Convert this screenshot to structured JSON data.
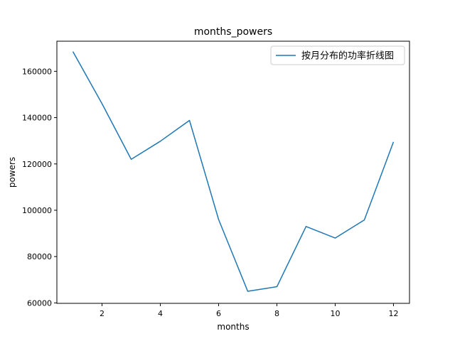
{
  "chart_data": {
    "type": "line",
    "title": "months_powers",
    "xlabel": "months",
    "ylabel": "powers",
    "xlim": [
      0.45,
      12.55
    ],
    "ylim": [
      59800,
      173000
    ],
    "xticks": [
      2,
      4,
      6,
      8,
      10,
      12
    ],
    "yticks": [
      60000,
      80000,
      100000,
      120000,
      140000,
      160000
    ],
    "grid": false,
    "legend_position": "top-right",
    "series": [
      {
        "name": "按月分布的功率折线图",
        "color": "#1f77b4",
        "x": [
          1,
          2,
          3,
          4,
          5,
          6,
          7,
          8,
          9,
          10,
          11,
          12
        ],
        "y": [
          168500,
          146000,
          122000,
          129800,
          138800,
          96000,
          65000,
          67000,
          93000,
          88000,
          95800,
          129500
        ]
      }
    ]
  }
}
